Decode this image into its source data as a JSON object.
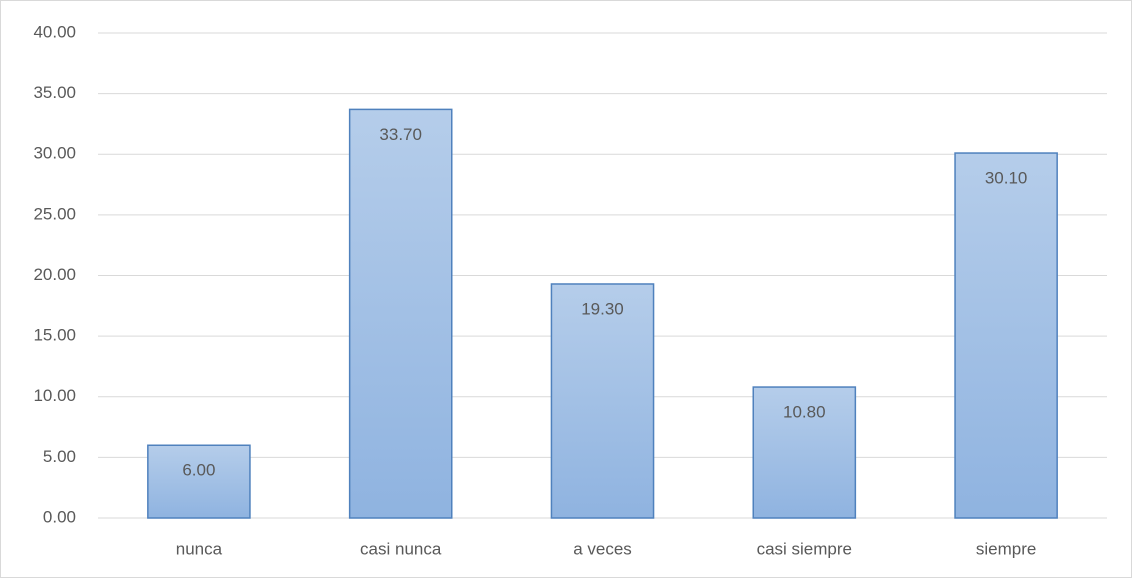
{
  "chart_data": {
    "type": "bar",
    "categories": [
      "nunca",
      "casi nunca",
      "a veces",
      "casi siempre",
      "siempre"
    ],
    "values": [
      6.0,
      33.7,
      19.3,
      10.8,
      30.1
    ],
    "value_labels": [
      "6.00",
      "33.70",
      "19.30",
      "10.80",
      "30.10"
    ],
    "color": "#9dbde4",
    "ylim": [
      0,
      40
    ],
    "yticks": [
      {
        "value": 0,
        "label": "0.00"
      },
      {
        "value": 5,
        "label": "5.00"
      },
      {
        "value": 10,
        "label": "10.00"
      },
      {
        "value": 15,
        "label": "15.00"
      },
      {
        "value": 20,
        "label": "20.00"
      },
      {
        "value": 25,
        "label": "25.00"
      },
      {
        "value": 30,
        "label": "30.00"
      },
      {
        "value": 35,
        "label": "35.00"
      },
      {
        "value": 40,
        "label": "40.00"
      }
    ],
    "grid": true
  }
}
